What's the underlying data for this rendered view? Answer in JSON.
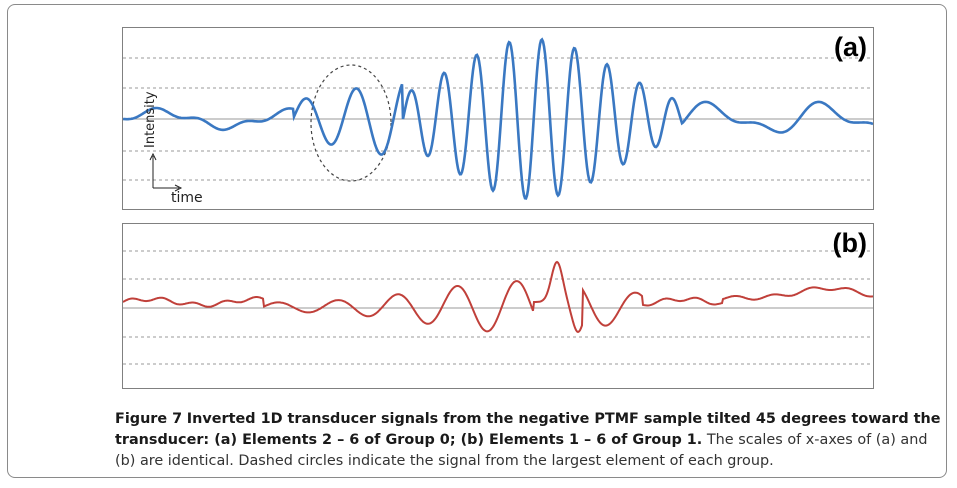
{
  "figure": {
    "panel_a": {
      "label": "(a)",
      "y_axis_label": "Intensity",
      "x_axis_label": "time",
      "line_color": "#3a78c2"
    },
    "panel_b": {
      "label": "(b)",
      "line_color": "#c0403a"
    },
    "grid_color": "#9a9a9a",
    "caption": {
      "figure_number": "Figure 7",
      "bold_title": "Inverted 1D transducer signals from the negative PTMF sample tilted 45 degrees toward the transducer: (a) Elements 2 – 6 of Group 0; (b) Elements 1 – 6 of Group 1.",
      "body": "The scales of x-axes of (a) and (b) are identical. Dashed circles indicate the signal from the largest element of each group."
    }
  }
}
